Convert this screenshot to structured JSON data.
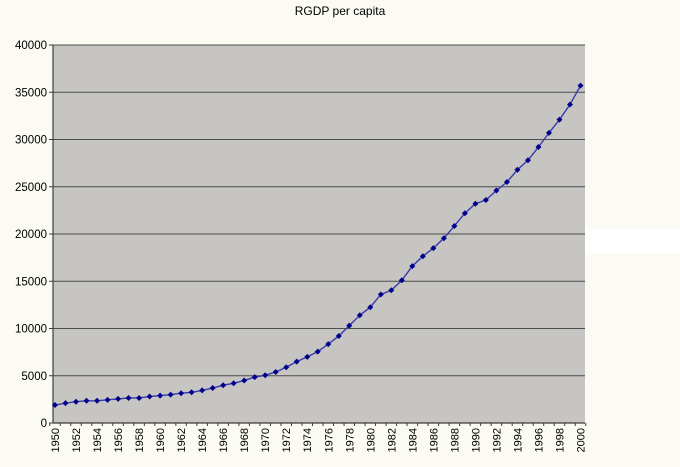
{
  "title": "RGDP per capita",
  "colors": {
    "page_bg": "#fbfaf3",
    "highlight_band": "#ffffff",
    "plot_bg": "#c6c5c1",
    "gridline": "#4d4d4d",
    "axis": "#3c3c3c",
    "text": "#000000",
    "series_line": "#3a3aad",
    "series_marker": "#00008b"
  },
  "chart_data": {
    "type": "line",
    "title": "RGDP per capita",
    "series_name": "RGDP per capita",
    "x": [
      1950,
      1951,
      1952,
      1953,
      1954,
      1955,
      1956,
      1957,
      1958,
      1959,
      1960,
      1961,
      1962,
      1963,
      1964,
      1965,
      1966,
      1967,
      1968,
      1969,
      1970,
      1971,
      1972,
      1973,
      1974,
      1975,
      1976,
      1977,
      1978,
      1979,
      1980,
      1981,
      1982,
      1983,
      1984,
      1985,
      1986,
      1987,
      1988,
      1989,
      1990,
      1991,
      1992,
      1993,
      1994,
      1995,
      1996,
      1997,
      1998,
      1999,
      2000
    ],
    "values": [
      1900,
      2100,
      2250,
      2350,
      2350,
      2450,
      2550,
      2650,
      2650,
      2800,
      2900,
      3000,
      3150,
      3250,
      3450,
      3700,
      4000,
      4200,
      4500,
      4850,
      5050,
      5400,
      5900,
      6500,
      7000,
      7550,
      8350,
      9200,
      10300,
      11400,
      12250,
      13600,
      14050,
      15100,
      16600,
      17650,
      18500,
      19550,
      20850,
      22200,
      23200,
      23600,
      24600,
      25500,
      26800,
      27800,
      29200,
      30700,
      32100,
      33700,
      35700
    ],
    "xlabel": "",
    "ylabel": "",
    "ylim": [
      0,
      40000
    ],
    "ytick_step": 5000,
    "ytick_labels": [
      "0",
      "5000",
      "10000",
      "15000",
      "20000",
      "25000",
      "30000",
      "35000",
      "40000"
    ],
    "xtick_label_interval": 2,
    "x_label_rotation": -90,
    "grid": true,
    "legend_position": "none",
    "marker": "diamond"
  }
}
